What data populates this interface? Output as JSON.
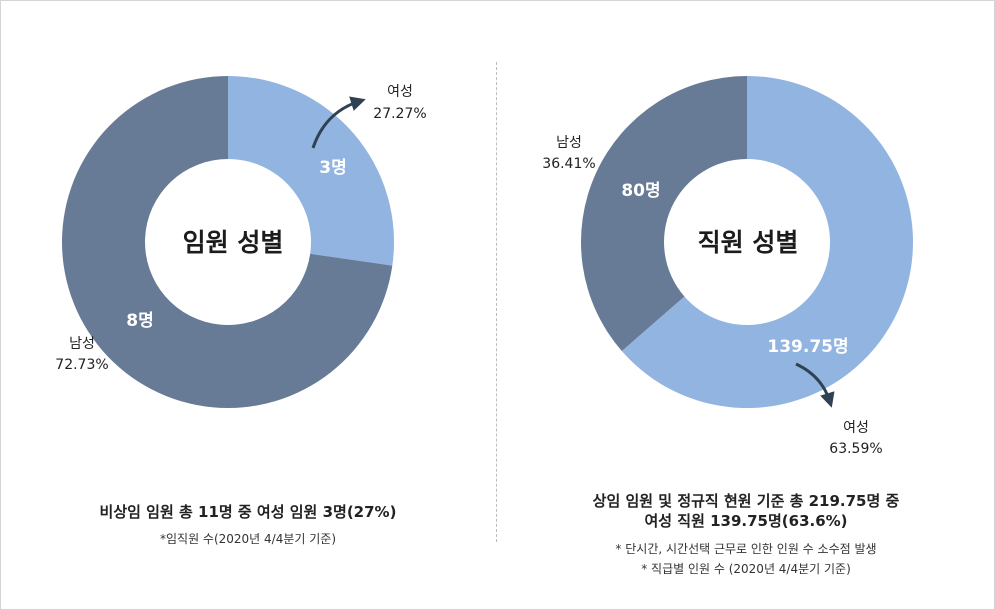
{
  "colors": {
    "female": "#92b4e0",
    "male": "#677a96",
    "arrow": "#2e4254"
  },
  "chart_data": [
    {
      "type": "pie",
      "title": "임원 성별",
      "unit": "명",
      "slices": [
        {
          "name": "여성",
          "value": 3,
          "label": "3명",
          "percent_label": "27.27%"
        },
        {
          "name": "남성",
          "value": 8,
          "label": "8명",
          "percent_label": "72.73%"
        }
      ],
      "caption": "비상임 임원 총 11명 중 여성 임원 3명(27%)",
      "notes": [
        "*임직원 수(2020년 4/4분기 기준)"
      ]
    },
    {
      "type": "pie",
      "title": "직원 성별",
      "unit": "명",
      "slices": [
        {
          "name": "여성",
          "value": 139.75,
          "label": "139.75명",
          "percent_label": "63.59%"
        },
        {
          "name": "남성",
          "value": 80,
          "label": "80명",
          "percent_label": "36.41%"
        }
      ],
      "caption_lines": [
        "상임 임원 및 정규직 현원 기준 총 219.75명 중",
        "여성 직원 139.75명(63.6%)"
      ],
      "notes": [
        "* 단시간, 시간선택 근무로 인한 인원 수 소수점 발생",
        "* 직급별 인원 수 (2020년 4/4분기 기준)"
      ]
    }
  ]
}
